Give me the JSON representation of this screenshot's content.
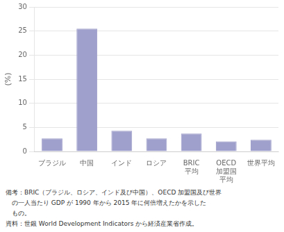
{
  "chart_data": {
    "type": "bar",
    "categories": [
      "ブラジル",
      "中国",
      "インド",
      "ロシア",
      "BRIC\n平均",
      "OECD\n加盟国\n平均",
      "世界平均"
    ],
    "values": [
      2.7,
      25.5,
      4.3,
      2.7,
      3.7,
      2.1,
      2.4
    ],
    "color": "#a0a0cc",
    "ylabel": "(%)",
    "ylim": [
      0,
      30
    ],
    "yticks": [
      0,
      5,
      10,
      15,
      20,
      25,
      30
    ],
    "grid": true,
    "annotations": [
      "備考：BRIC（ブラジル、ロシア、インド及び中国）、OECD 加盟国及び世界",
      "　の一人当たり GDP が 1990 年から 2015 年に何倍増えたかを示した",
      "　もの。",
      "資料：世銀 World Development Indicators から経済産業省作成。"
    ]
  }
}
